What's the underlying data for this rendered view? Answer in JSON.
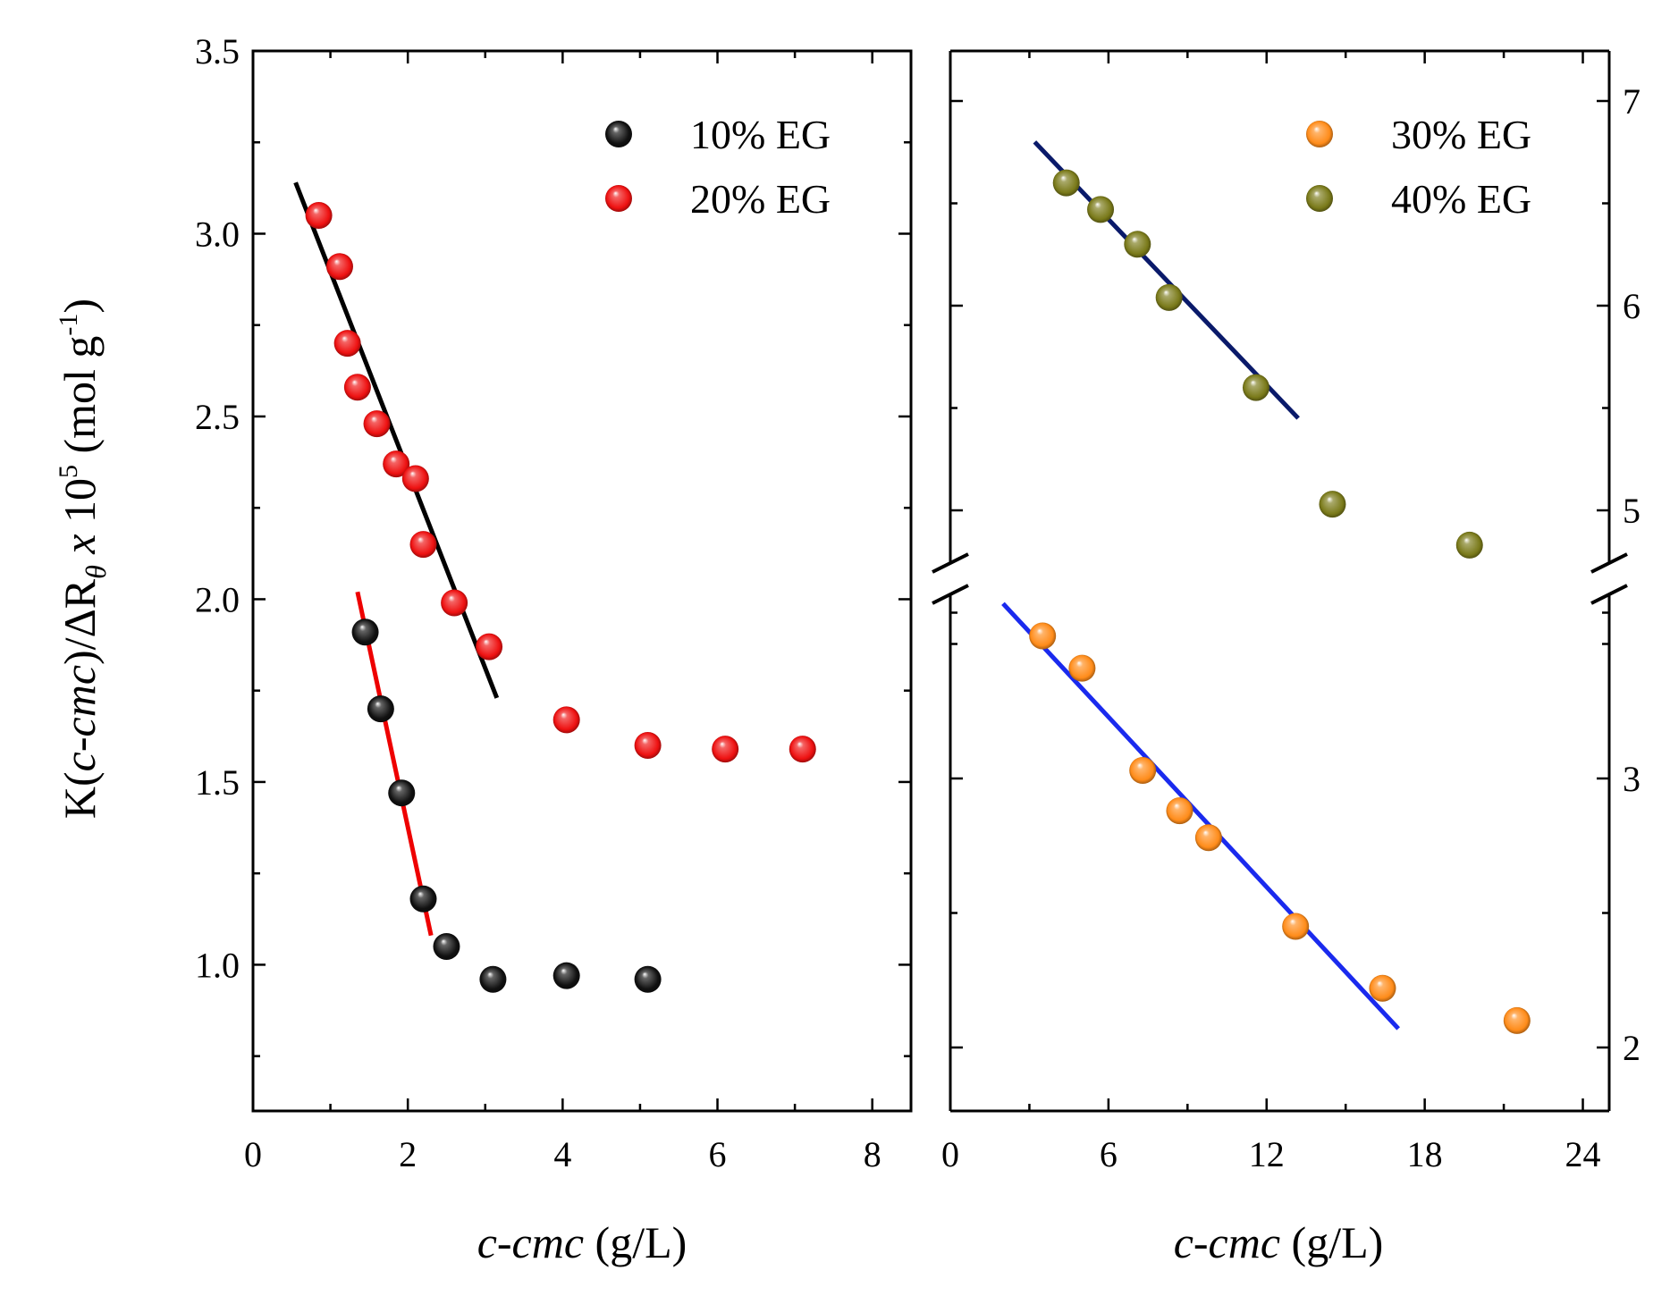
{
  "figure": {
    "y_axis_title": {
      "prefix": "K(",
      "italic1": "c",
      "dash": "-",
      "italic2": "cmc",
      "mid": ")/ΔR",
      "sub": "θ",
      "space": "  ",
      "times": "x",
      "ten": " 10",
      "exp": "5",
      "unit_open": " (mol g",
      "unit_exp": "-1",
      "unit_close": ")"
    }
  },
  "chart_data": [
    {
      "type": "scatter",
      "panel": "left",
      "xlabel": {
        "italic": "c-cmc",
        "rest": " (g/L)"
      },
      "xlim": [
        0,
        8.5
      ],
      "ylim": [
        0.6,
        3.5
      ],
      "xticks": [
        0,
        2,
        4,
        6,
        8
      ],
      "yticks": [
        1.0,
        1.5,
        2.0,
        2.5,
        3.0,
        3.5
      ],
      "ytick_labels": [
        "1.0",
        "1.5",
        "2.0",
        "2.5",
        "3.0",
        "3.5"
      ],
      "legend_position": "top-right",
      "series": [
        {
          "name": "10% EG",
          "color": "#111111",
          "points": [
            [
              1.45,
              1.91
            ],
            [
              1.65,
              1.7
            ],
            [
              1.92,
              1.47
            ],
            [
              2.2,
              1.18
            ],
            [
              2.5,
              1.05
            ],
            [
              3.1,
              0.96
            ],
            [
              4.05,
              0.97
            ],
            [
              5.1,
              0.96
            ]
          ]
        },
        {
          "name": "20% EG",
          "color": "#ee1111",
          "points": [
            [
              0.85,
              3.05
            ],
            [
              1.12,
              2.91
            ],
            [
              1.22,
              2.7
            ],
            [
              1.35,
              2.58
            ],
            [
              1.6,
              2.48
            ],
            [
              1.85,
              2.37
            ],
            [
              2.1,
              2.33
            ],
            [
              2.2,
              2.15
            ],
            [
              2.6,
              1.99
            ],
            [
              3.05,
              1.87
            ],
            [
              4.05,
              1.67
            ],
            [
              5.1,
              1.6
            ],
            [
              6.1,
              1.59
            ],
            [
              7.1,
              1.59
            ]
          ]
        }
      ],
      "fit_lines": [
        {
          "color": "#000000",
          "from": [
            0.55,
            3.14
          ],
          "to": [
            3.15,
            1.73
          ]
        },
        {
          "color": "#ee0000",
          "from": [
            1.35,
            2.02
          ],
          "to": [
            2.3,
            1.08
          ]
        }
      ]
    },
    {
      "type": "scatter",
      "panel": "right",
      "xlabel": {
        "italic": "c-cmc",
        "rest": " (g/L)"
      },
      "xlim": [
        0,
        25
      ],
      "xticks": [
        0,
        6,
        12,
        18,
        24
      ],
      "y_break": true,
      "y_upper_range": [
        4.0,
        7.2
      ],
      "y_lower_range": [
        1.8,
        3.7
      ],
      "yticks_labeled": [
        2,
        3,
        5,
        6,
        7
      ],
      "legend_position": "top-right",
      "series": [
        {
          "name": "30% EG",
          "color": "#ff8c1a",
          "points": [
            [
              3.5,
              3.53
            ],
            [
              5.0,
              3.41
            ],
            [
              7.3,
              3.03
            ],
            [
              8.7,
              2.88
            ],
            [
              9.8,
              2.78
            ],
            [
              13.1,
              2.45
            ],
            [
              16.4,
              2.22
            ],
            [
              21.5,
              2.1
            ]
          ]
        },
        {
          "name": "40% EG",
          "color": "#7a7a1a",
          "points": [
            [
              4.4,
              6.6
            ],
            [
              5.7,
              6.47
            ],
            [
              7.1,
              6.3
            ],
            [
              8.3,
              6.04
            ],
            [
              11.6,
              5.6
            ],
            [
              14.5,
              5.03
            ],
            [
              19.7,
              4.83
            ]
          ]
        }
      ],
      "fit_lines": [
        {
          "color": "#0a1a6a",
          "from": [
            3.2,
            6.8
          ],
          "to": [
            13.2,
            5.45
          ]
        },
        {
          "color": "#1a2aee",
          "from": [
            2.0,
            3.65
          ],
          "to": [
            17.0,
            2.07
          ]
        }
      ]
    }
  ]
}
